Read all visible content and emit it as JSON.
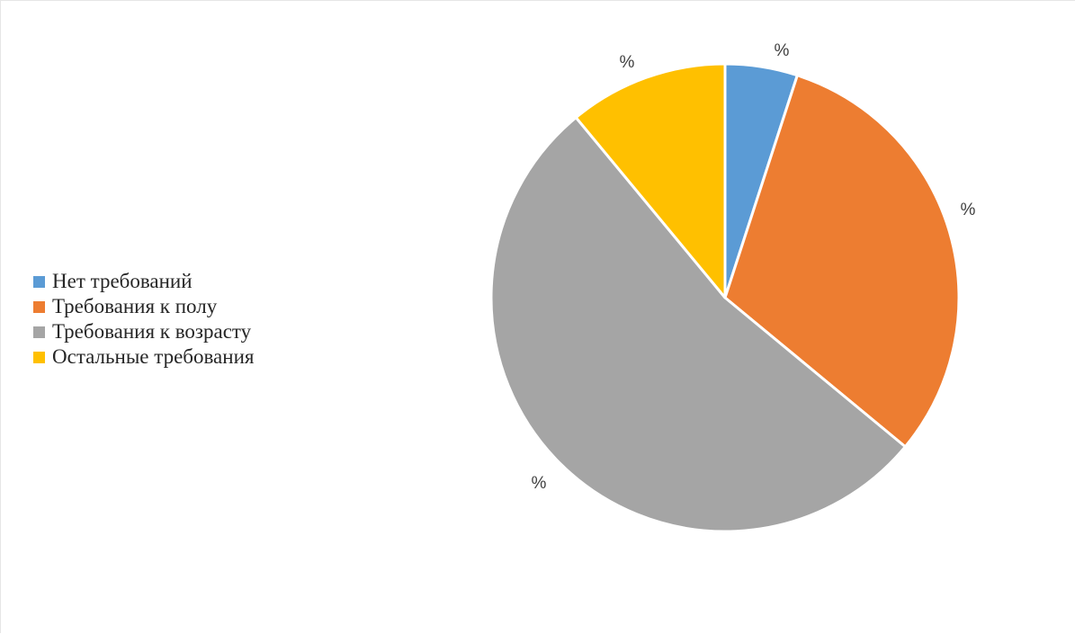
{
  "chart_data": {
    "type": "pie",
    "legend_position": "left",
    "slices": [
      {
        "label": "Нет требований",
        "value": 5,
        "data_label": "%",
        "color": "#5B9BD5"
      },
      {
        "label": "Требования к полу",
        "value": 31,
        "data_label": "%",
        "color": "#ED7D31"
      },
      {
        "label": "Требования к возрасту",
        "value": 53,
        "data_label": "%",
        "color": "#A5A5A5"
      },
      {
        "label": "Остальные требования",
        "value": 11,
        "data_label": "%",
        "color": "#FFC000"
      }
    ]
  }
}
